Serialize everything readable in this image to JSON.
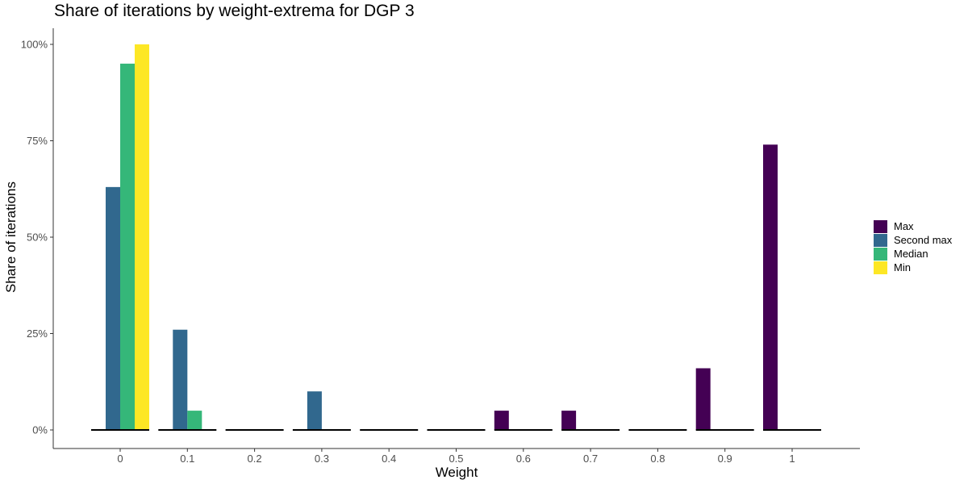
{
  "chart_data": {
    "type": "bar",
    "title": "Share of iterations by weight-extrema for DGP 3",
    "xlabel": "Weight",
    "ylabel": "Share of iterations",
    "categories": [
      "0",
      "0.1",
      "0.2",
      "0.3",
      "0.4",
      "0.5",
      "0.6",
      "0.7",
      "0.8",
      "0.9",
      "1"
    ],
    "ylim": [
      0,
      100
    ],
    "yticks": [
      0,
      25,
      50,
      75,
      100
    ],
    "ytick_labels": [
      "0%",
      "25%",
      "50%",
      "75%",
      "100%"
    ],
    "grid": false,
    "legend_position": "right",
    "series": [
      {
        "name": "Max",
        "color": "#440154",
        "values": [
          0,
          0,
          0,
          0,
          0,
          0,
          5,
          5,
          0,
          16,
          74
        ]
      },
      {
        "name": "Second max",
        "color": "#31688E",
        "values": [
          63,
          26,
          0,
          10,
          0,
          0,
          0,
          0,
          0,
          0,
          0
        ]
      },
      {
        "name": "Median",
        "color": "#35B779",
        "values": [
          95,
          5,
          0,
          0,
          0,
          0,
          0,
          0,
          0,
          0,
          0
        ]
      },
      {
        "name": "Min",
        "color": "#FDE725",
        "values": [
          100,
          0,
          0,
          0,
          0,
          0,
          0,
          0,
          0,
          0,
          0
        ]
      }
    ]
  }
}
